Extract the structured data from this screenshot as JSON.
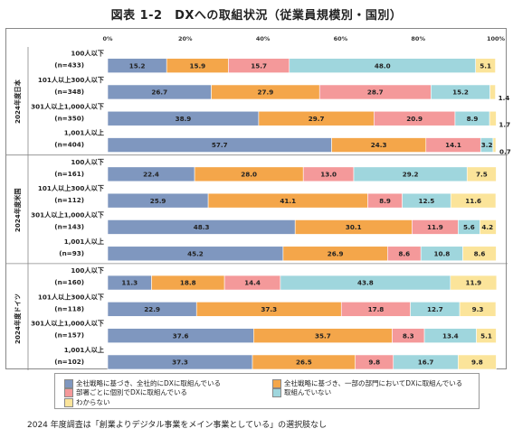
{
  "title": "図表 1-2　DXへの取組状況（従業員規模別・国別）",
  "footnote": "2024 年度調査は「創業よりデジタル事業をメイン事業としている」の選択肢なし",
  "chart_data": {
    "type": "bar",
    "orientation": "horizontal",
    "stacked": true,
    "xlim": [
      0,
      100
    ],
    "x_ticks": [
      "0%",
      "20%",
      "40%",
      "60%",
      "80%",
      "100%"
    ],
    "groups": [
      {
        "label": "2024年度日本",
        "rows": [
          {
            "label1": "100人以下",
            "label2": "(n=433)",
            "values": [
              15.2,
              15.9,
              15.7,
              48.0,
              5.1
            ]
          },
          {
            "label1": "101人以上300人以下",
            "label2": "(n=348)",
            "values": [
              26.7,
              27.9,
              28.7,
              15.2,
              1.4
            ]
          },
          {
            "label1": "301人以上1,000人以下",
            "label2": "(n=350)",
            "values": [
              38.9,
              29.7,
              20.9,
              8.9,
              1.7
            ]
          },
          {
            "label1": "1,001人以上",
            "label2": "(n=404)",
            "values": [
              57.7,
              24.3,
              14.1,
              3.2,
              0.7
            ]
          }
        ]
      },
      {
        "label": "2024年度米国",
        "rows": [
          {
            "label1": "100人以下",
            "label2": "(n=161)",
            "values": [
              22.4,
              28.0,
              13.0,
              29.2,
              7.5
            ]
          },
          {
            "label1": "101人以上300人以下",
            "label2": "(n=112)",
            "values": [
              25.9,
              41.1,
              8.9,
              12.5,
              11.6
            ]
          },
          {
            "label1": "301人以上1,000人以下",
            "label2": "(n=143)",
            "values": [
              48.3,
              30.1,
              11.9,
              5.6,
              4.2
            ]
          },
          {
            "label1": "1,001人以上",
            "label2": "(n=93)",
            "values": [
              45.2,
              26.9,
              8.6,
              10.8,
              8.6
            ]
          }
        ]
      },
      {
        "label": "2024年度ドイツ",
        "rows": [
          {
            "label1": "100人以下",
            "label2": "(n=160)",
            "values": [
              11.3,
              18.8,
              14.4,
              43.8,
              11.9
            ]
          },
          {
            "label1": "101人以上300人以下",
            "label2": "(n=118)",
            "values": [
              22.9,
              37.3,
              17.8,
              12.7,
              9.3
            ]
          },
          {
            "label1": "301人以上1,000人以下",
            "label2": "(n=157)",
            "values": [
              37.6,
              35.7,
              8.3,
              13.4,
              5.1
            ]
          },
          {
            "label1": "1,001人以上",
            "label2": "(n=102)",
            "values": [
              37.3,
              26.5,
              9.8,
              16.7,
              9.8
            ]
          }
        ]
      }
    ],
    "series": [
      {
        "name": "全社戦略に基づき、全社的にDXに取組んでいる",
        "color": "#7f97bf"
      },
      {
        "name": "全社戦略に基づき、一部の部門においてDXに取組んでいる",
        "color": "#f4a64a"
      },
      {
        "name": "部署ごとに個別でDXに取組んでいる",
        "color": "#f4999a"
      },
      {
        "name": "取組んでいない",
        "color": "#9fd6dd"
      },
      {
        "name": "わからない",
        "color": "#fbe49a"
      }
    ],
    "grid": false,
    "legend_position": "bottom"
  }
}
